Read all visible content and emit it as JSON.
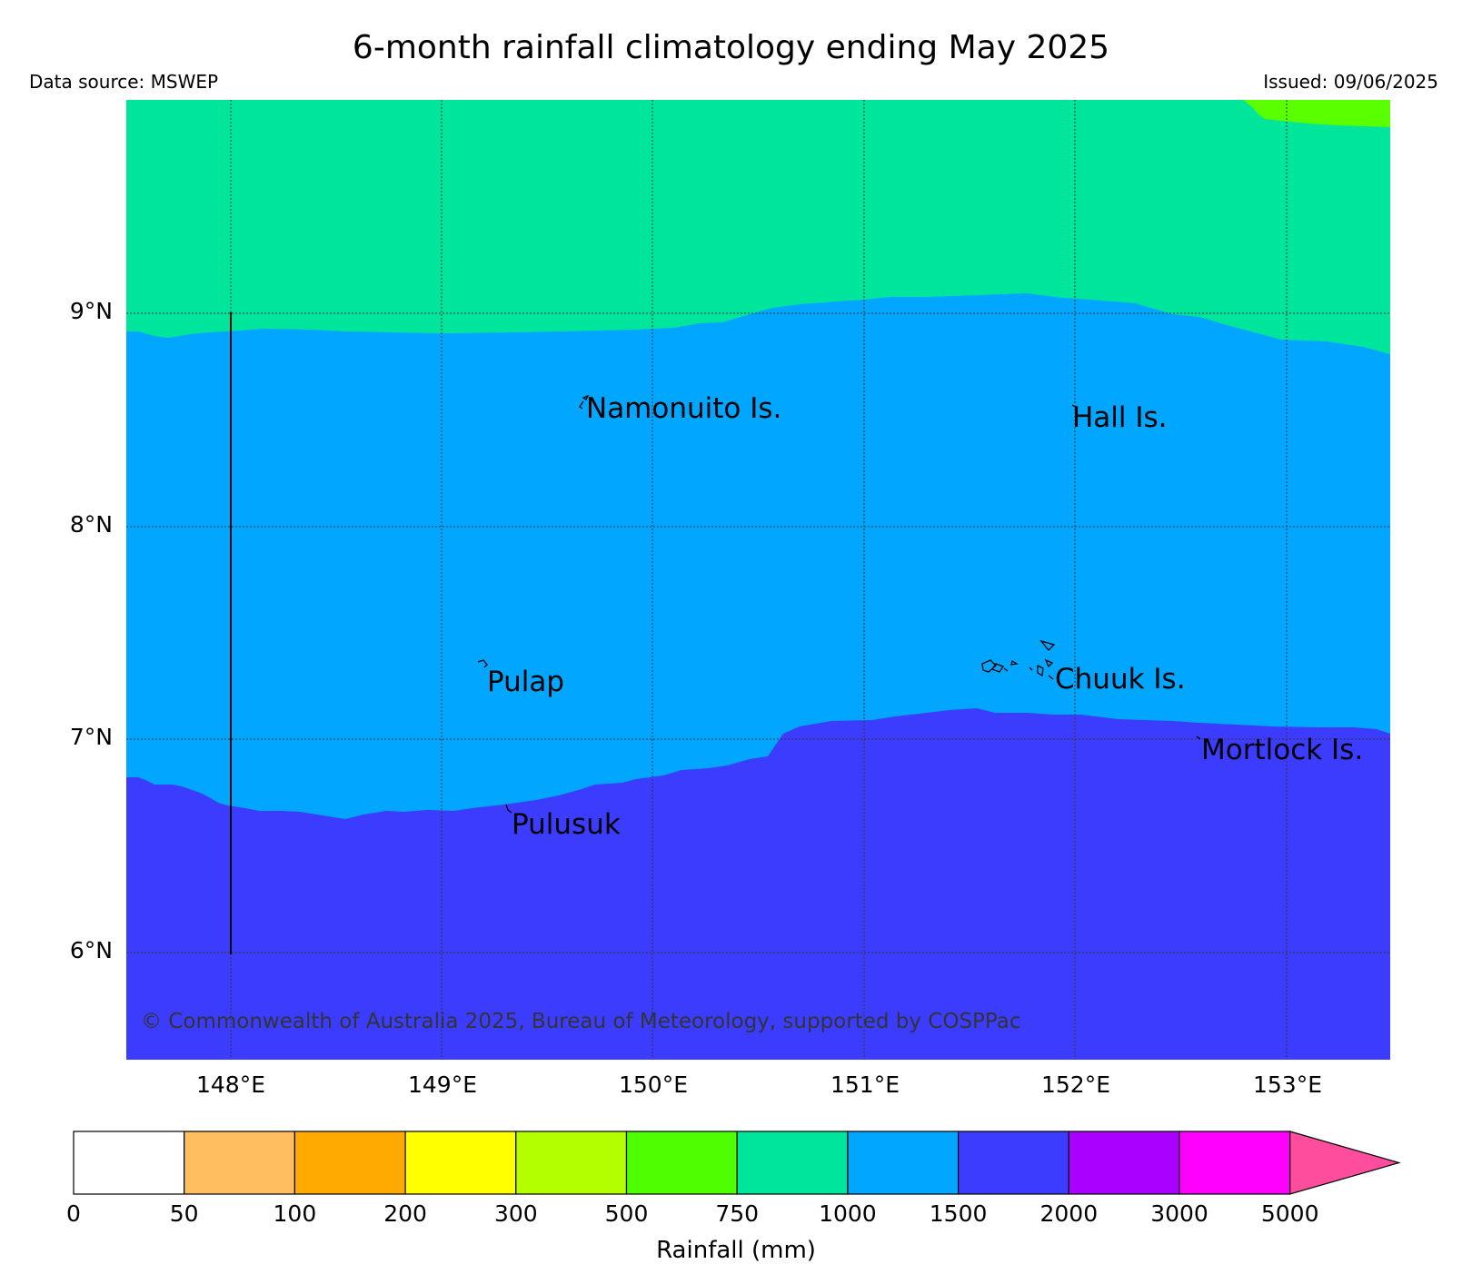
{
  "title": "6-month rainfall climatology ending May 2025",
  "data_source": "Data source: MSWEP",
  "issued": "Issued: 09/06/2025",
  "copyright": "© Commonwealth of Australia 2025, Bureau of Meteorology, supported by COSPPac",
  "map": {
    "lon_ticks": [
      "148°E",
      "149°E",
      "150°E",
      "151°E",
      "152°E",
      "153°E"
    ],
    "lat_ticks": [
      "9°N",
      "8°N",
      "7°N",
      "6°N"
    ],
    "gridlines": true,
    "regions": [
      {
        "range": "1000-1500",
        "color": "#00a6ff"
      },
      {
        "range": "750-1000",
        "color": "#00e59c"
      },
      {
        "range": "1500-2000",
        "color": "#3c3cff"
      },
      {
        "range": "500-750",
        "color": "#5aff00"
      }
    ],
    "places": [
      "Namonuito Is.",
      "Hall Is.",
      "Pulap",
      "Chuuk Is.",
      "Mortlock Is.",
      "Pulusuk"
    ]
  },
  "colorbar": {
    "title": "Rainfall (mm)",
    "labels": [
      "0",
      "50",
      "100",
      "200",
      "300",
      "500",
      "750",
      "1000",
      "1500",
      "2000",
      "3000",
      "5000"
    ],
    "colors": [
      "#ffffff",
      "#ffbf60",
      "#ffaa00",
      "#ffff00",
      "#b3ff00",
      "#4dff00",
      "#00e59c",
      "#00a6ff",
      "#3c3cff",
      "#aa00ff",
      "#ff00ff"
    ],
    "extend_color": "#ff4d9d"
  }
}
